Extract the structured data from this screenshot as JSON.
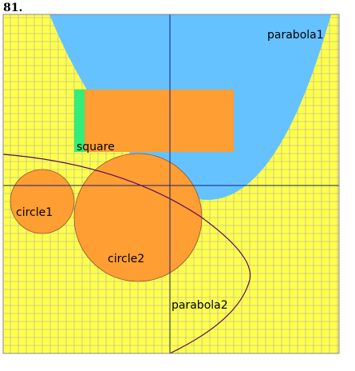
{
  "problem_number": "81.",
  "labels": {
    "parabola1": "parabola1",
    "square": "square",
    "circle1": "circle1",
    "circle2": "circle2",
    "parabola2": "parabola2"
  },
  "colors": {
    "background": "#FFFF4D",
    "grid": "#A8A8A8",
    "axes": "#1a1a80",
    "parabola1_fill": "#66C2FF",
    "square_fill": "#33EE77",
    "rectangle_fill": "#FF9E33",
    "circle_fill": "#FF9E33",
    "parabola2_stroke": "#5a0a5a"
  }
}
